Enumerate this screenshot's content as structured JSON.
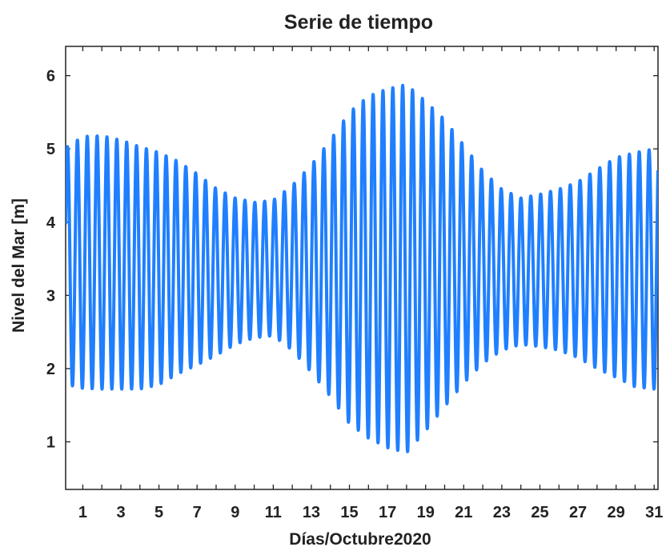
{
  "chart_data": {
    "type": "line",
    "title": "Serie de tiempo",
    "xlabel": "Días/Octubre2020",
    "ylabel": "Nivel del Mar [m]",
    "xlim": [
      0.1,
      31.2
    ],
    "ylim": [
      0.35,
      6.4
    ],
    "xticks": [
      1,
      3,
      5,
      7,
      9,
      11,
      13,
      15,
      17,
      19,
      21,
      23,
      25,
      27,
      29,
      31
    ],
    "yticks": [
      1,
      2,
      3,
      4,
      5,
      6
    ],
    "grid": false,
    "series": [
      {
        "color": "#1f7fff",
        "line_width": 4,
        "tidal_period_days": 0.5175,
        "mean_level": 3.45,
        "envelope": {
          "days": [
            0.2,
            1,
            2,
            3,
            4,
            5,
            6,
            7,
            8,
            9,
            10,
            11,
            12,
            13,
            14,
            15,
            16,
            17,
            18,
            19,
            20,
            21,
            22,
            23,
            24,
            25,
            26,
            27,
            28,
            29,
            30,
            31
          ],
          "high": [
            5.03,
            5.17,
            5.18,
            5.12,
            5.03,
            4.95,
            4.83,
            4.66,
            4.46,
            4.33,
            4.27,
            4.3,
            4.5,
            4.78,
            5.12,
            5.5,
            5.72,
            5.82,
            5.88,
            5.65,
            5.4,
            5.05,
            4.7,
            4.45,
            4.33,
            4.38,
            4.45,
            4.55,
            4.72,
            4.88,
            4.95,
            5.0
          ],
          "low": [
            1.78,
            1.73,
            1.72,
            1.72,
            1.72,
            1.78,
            1.93,
            2.05,
            2.18,
            2.33,
            2.42,
            2.45,
            2.25,
            1.95,
            1.62,
            1.25,
            1.05,
            0.92,
            0.85,
            1.15,
            1.48,
            1.8,
            2.07,
            2.25,
            2.33,
            2.3,
            2.25,
            2.15,
            2.0,
            1.88,
            1.75,
            1.72
          ]
        }
      }
    ]
  }
}
